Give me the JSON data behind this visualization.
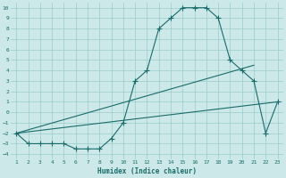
{
  "xlabel": "Humidex (Indice chaleur)",
  "bg_color": "#cce8e8",
  "grid_color": "#99cccc",
  "line_color": "#1a6b6b",
  "xlim": [
    0.5,
    23.5
  ],
  "ylim": [
    -4.5,
    10.5
  ],
  "xticks": [
    1,
    2,
    3,
    4,
    5,
    6,
    7,
    8,
    9,
    10,
    11,
    12,
    13,
    14,
    15,
    16,
    17,
    18,
    19,
    20,
    21,
    22,
    23
  ],
  "yticks": [
    -4,
    -3,
    -2,
    -1,
    0,
    1,
    2,
    3,
    4,
    5,
    6,
    7,
    8,
    9,
    10
  ],
  "curve_x": [
    1,
    2,
    3,
    4,
    5,
    6,
    7,
    8,
    9,
    10,
    11,
    12,
    13,
    14,
    15,
    16,
    17,
    18,
    19,
    20,
    21,
    22,
    23
  ],
  "curve_y": [
    -2,
    -3,
    -3,
    -3,
    -3,
    -3.5,
    -3.5,
    -3.5,
    -2.5,
    -1,
    3,
    4,
    8,
    9,
    10,
    10,
    10,
    9,
    5,
    4,
    3,
    -2,
    1
  ],
  "line1_x": [
    1,
    23
  ],
  "line1_y": [
    -2,
    1
  ],
  "line2_x": [
    1,
    21
  ],
  "line2_y": [
    -2,
    4.5
  ],
  "marker": "+",
  "markersize": 4,
  "linewidth": 0.8
}
